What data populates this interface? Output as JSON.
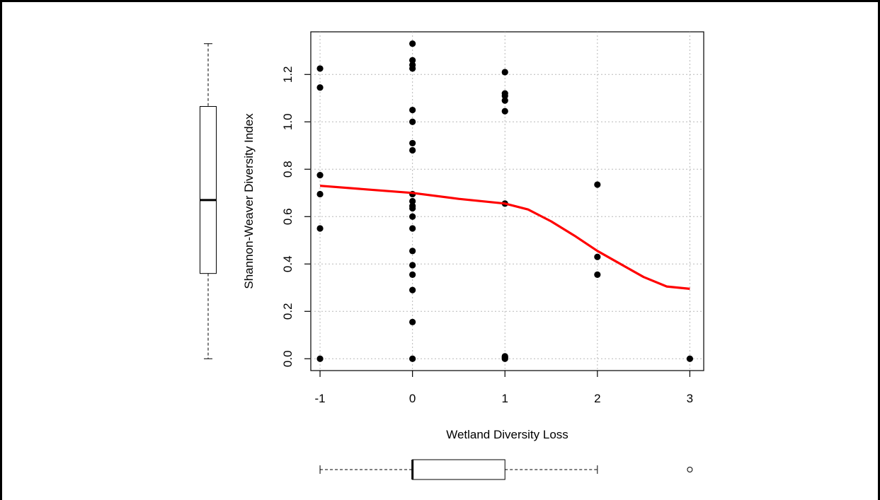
{
  "chart_data": {
    "type": "scatter",
    "title": "",
    "xlabel": "Wetland Diversity Loss",
    "ylabel": "Shannon-Weaver Diversity Index",
    "xlim": [
      -1.1,
      3.15
    ],
    "ylim": [
      -0.05,
      1.38
    ],
    "x_ticks": [
      -1,
      0,
      1,
      2,
      3
    ],
    "x_tick_labels": [
      "-1",
      "0",
      "1",
      "2",
      "3"
    ],
    "y_ticks": [
      0.0,
      0.2,
      0.4,
      0.6,
      0.8,
      1.0,
      1.2
    ],
    "y_tick_labels": [
      "0.0",
      "0.2",
      "0.4",
      "0.6",
      "0.8",
      "1.0",
      "1.2"
    ],
    "grid": true,
    "points_color": "#000000",
    "smooth_color": "#ff0000",
    "points": [
      {
        "x": -1,
        "y": 1.225
      },
      {
        "x": -1,
        "y": 1.145
      },
      {
        "x": -1,
        "y": 0.775
      },
      {
        "x": -1,
        "y": 0.695
      },
      {
        "x": -1,
        "y": 0.55
      },
      {
        "x": -1,
        "y": 0.0
      },
      {
        "x": 0,
        "y": 1.33
      },
      {
        "x": 0,
        "y": 1.26
      },
      {
        "x": 0,
        "y": 1.24
      },
      {
        "x": 0,
        "y": 1.225
      },
      {
        "x": 0,
        "y": 1.05
      },
      {
        "x": 0,
        "y": 1.0
      },
      {
        "x": 0,
        "y": 0.91
      },
      {
        "x": 0,
        "y": 0.88
      },
      {
        "x": 0,
        "y": 0.695
      },
      {
        "x": 0,
        "y": 0.665
      },
      {
        "x": 0,
        "y": 0.645
      },
      {
        "x": 0,
        "y": 0.635
      },
      {
        "x": 0,
        "y": 0.6
      },
      {
        "x": 0,
        "y": 0.55
      },
      {
        "x": 0,
        "y": 0.455
      },
      {
        "x": 0,
        "y": 0.395
      },
      {
        "x": 0,
        "y": 0.355
      },
      {
        "x": 0,
        "y": 0.29
      },
      {
        "x": 0,
        "y": 0.155
      },
      {
        "x": 0,
        "y": 0.0
      },
      {
        "x": 1,
        "y": 1.21
      },
      {
        "x": 1,
        "y": 1.12
      },
      {
        "x": 1,
        "y": 1.11
      },
      {
        "x": 1,
        "y": 1.09
      },
      {
        "x": 1,
        "y": 1.045
      },
      {
        "x": 1,
        "y": 0.655
      },
      {
        "x": 1,
        "y": 0.01
      },
      {
        "x": 1,
        "y": 0.005
      },
      {
        "x": 1,
        "y": 0.0
      },
      {
        "x": 2,
        "y": 0.735
      },
      {
        "x": 2,
        "y": 0.43
      },
      {
        "x": 2,
        "y": 0.355
      },
      {
        "x": 3,
        "y": 0.0
      }
    ],
    "smooth_line": [
      {
        "x": -1,
        "y": 0.73
      },
      {
        "x": -0.5,
        "y": 0.715
      },
      {
        "x": 0,
        "y": 0.7
      },
      {
        "x": 0.5,
        "y": 0.675
      },
      {
        "x": 1,
        "y": 0.655
      },
      {
        "x": 1.25,
        "y": 0.63
      },
      {
        "x": 1.5,
        "y": 0.58
      },
      {
        "x": 1.75,
        "y": 0.52
      },
      {
        "x": 2,
        "y": 0.455
      },
      {
        "x": 2.25,
        "y": 0.4
      },
      {
        "x": 2.5,
        "y": 0.345
      },
      {
        "x": 2.75,
        "y": 0.305
      },
      {
        "x": 3,
        "y": 0.295
      }
    ],
    "y_boxplot": {
      "min": 0.0,
      "q1": 0.36,
      "median": 0.67,
      "q3": 1.065,
      "max": 1.33
    },
    "x_boxplot": {
      "min": -1,
      "q1": 0,
      "median": 0,
      "q3": 1,
      "max": 2,
      "outliers": [
        3
      ]
    }
  }
}
